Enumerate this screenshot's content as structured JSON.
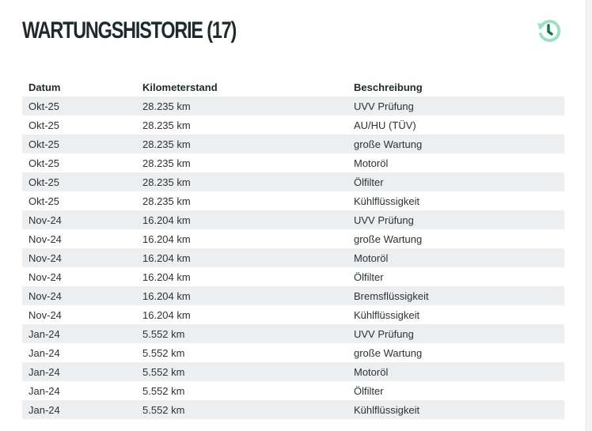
{
  "title": "WARTUNGSHISTORIE (17)",
  "icon": "history-icon",
  "colors": {
    "icon_light": "#9fe0c4",
    "icon_dark": "#0f7a4a",
    "row_shade": "#eceef0"
  },
  "table": {
    "headers": [
      "Datum",
      "Kilometerstand",
      "Beschreibung"
    ],
    "rows": [
      [
        "Okt-25",
        "28.235 km",
        "UVV Prüfung"
      ],
      [
        "Okt-25",
        "28.235 km",
        "AU/HU (TÜV)"
      ],
      [
        "Okt-25",
        "28.235 km",
        "große Wartung"
      ],
      [
        "Okt-25",
        "28.235 km",
        "Motoröl"
      ],
      [
        "Okt-25",
        "28.235 km",
        "Ölfilter"
      ],
      [
        "Okt-25",
        "28.235 km",
        "Kühlflüssigkeit"
      ],
      [
        "Nov-24",
        "16.204 km",
        "UVV Prüfung"
      ],
      [
        "Nov-24",
        "16.204 km",
        "große Wartung"
      ],
      [
        "Nov-24",
        "16.204 km",
        "Motoröl"
      ],
      [
        "Nov-24",
        "16.204 km",
        "Ölfilter"
      ],
      [
        "Nov-24",
        "16.204 km",
        "Bremsflüssigkeit"
      ],
      [
        "Nov-24",
        "16.204 km",
        "Kühlflüssigkeit"
      ],
      [
        "Jan-24",
        "5.552 km",
        "UVV Prüfung"
      ],
      [
        "Jan-24",
        "5.552 km",
        "große Wartung"
      ],
      [
        "Jan-24",
        "5.552 km",
        "Motoröl"
      ],
      [
        "Jan-24",
        "5.552 km",
        "Ölfilter"
      ],
      [
        "Jan-24",
        "5.552 km",
        "Kühlflüssigkeit"
      ]
    ]
  }
}
